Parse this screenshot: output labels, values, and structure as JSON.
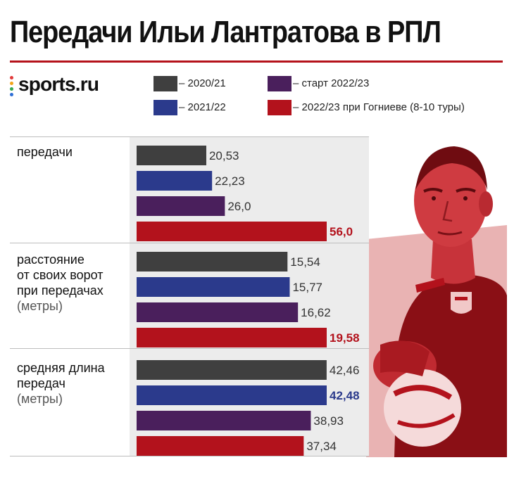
{
  "title": "Передачи Ильи Лантратова в РПЛ",
  "brand": {
    "name": "sports.ru",
    "accent": "#b5121b"
  },
  "legend": [
    {
      "label": "– 2020/21",
      "color": "#3f3f3f"
    },
    {
      "label": "– 2021/22",
      "color": "#2b3a8c"
    },
    {
      "label": "– старт 2022/23",
      "color": "#4a1f5c"
    },
    {
      "label": "– 2022/23 при Гогниеве (8-10 туры)",
      "color": "#b3121c"
    }
  ],
  "chart_data": {
    "type": "bar",
    "orientation": "horizontal",
    "title": "Передачи Ильи Лантратова в РПЛ",
    "series_names": [
      "2020/21",
      "2021/22",
      "старт 2022/23",
      "2022/23 при Гогниеве (8-10 туры)"
    ],
    "groups": [
      {
        "label": "передачи",
        "unit": "",
        "values": [
          20.53,
          22.23,
          26.0,
          56.0
        ],
        "value_labels": [
          "20,53",
          "22,23",
          "26,0",
          "56,0"
        ],
        "highlight": 3,
        "xmax": 56.0
      },
      {
        "label": "расстояние от своих ворот при передачах",
        "unit": "(метры)",
        "values": [
          15.54,
          15.77,
          16.62,
          19.58
        ],
        "value_labels": [
          "15,54",
          "15,77",
          "16,62",
          "19,58"
        ],
        "highlight": 3,
        "xmax": 19.58
      },
      {
        "label": "средняя длина передач",
        "unit": "(метры)",
        "values": [
          42.46,
          42.48,
          38.93,
          37.34
        ],
        "value_labels": [
          "42,46",
          "42,48",
          "38,93",
          "37,34"
        ],
        "highlight": 1,
        "xmax": 42.48
      }
    ]
  },
  "row_labels": {
    "passes": "передачи",
    "distance_l1": "расстояние",
    "distance_l2": "от своих ворот",
    "distance_l3": "при передачах",
    "distance_unit": "(метры)",
    "length_l1": "средняя длина",
    "length_l2": "передач",
    "length_unit": "(метры)"
  }
}
